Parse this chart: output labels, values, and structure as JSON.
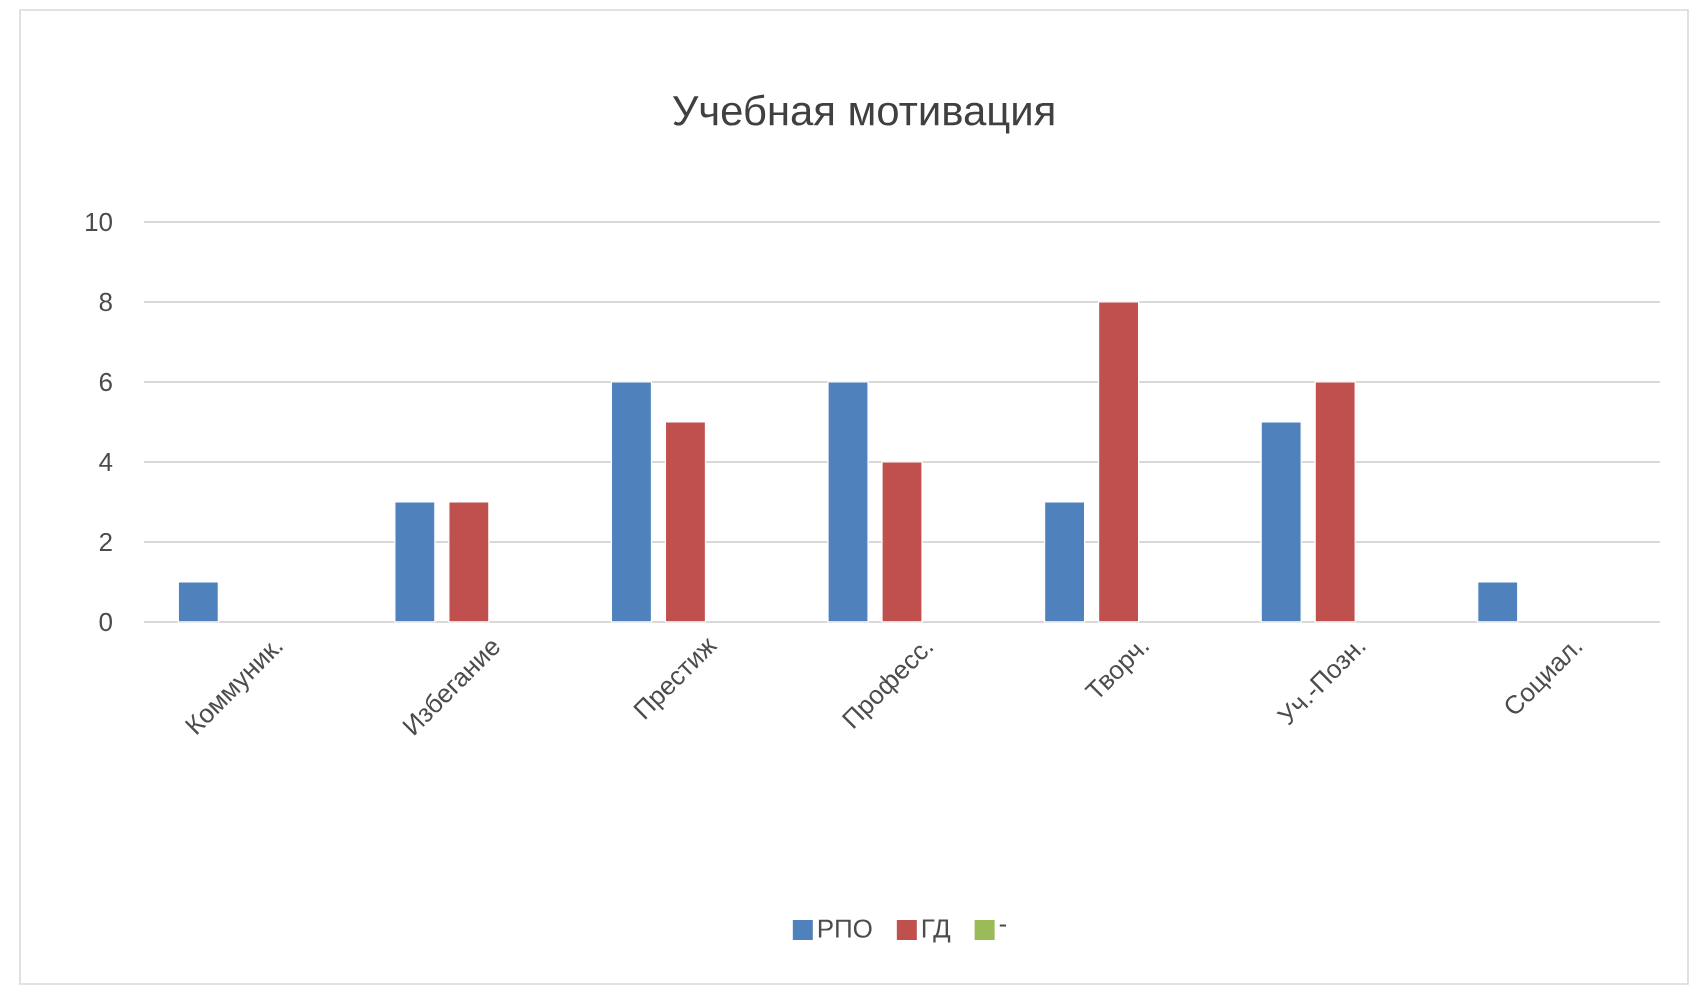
{
  "chart_data": {
    "type": "bar",
    "title": "Учебная мотивация",
    "categories": [
      "Коммуник.",
      "Избегание",
      "Престиж",
      "Професс.",
      "Творч.",
      "Уч.-Позн.",
      "Социал."
    ],
    "series": [
      {
        "name": "РПО",
        "color": "#4f81bd",
        "values": [
          1,
          3,
          6,
          6,
          3,
          5,
          1
        ]
      },
      {
        "name": "ГД",
        "color": "#c0504d",
        "values": [
          null,
          3,
          5,
          4,
          8,
          6,
          null
        ]
      },
      {
        "name": "-",
        "color": "#9bbb59",
        "values": [
          null,
          null,
          null,
          null,
          null,
          null,
          null
        ]
      }
    ],
    "ylim": [
      0,
      10
    ],
    "yticks": [
      0,
      2,
      4,
      6,
      8,
      10
    ],
    "grid": "y",
    "legend": "bottom"
  }
}
